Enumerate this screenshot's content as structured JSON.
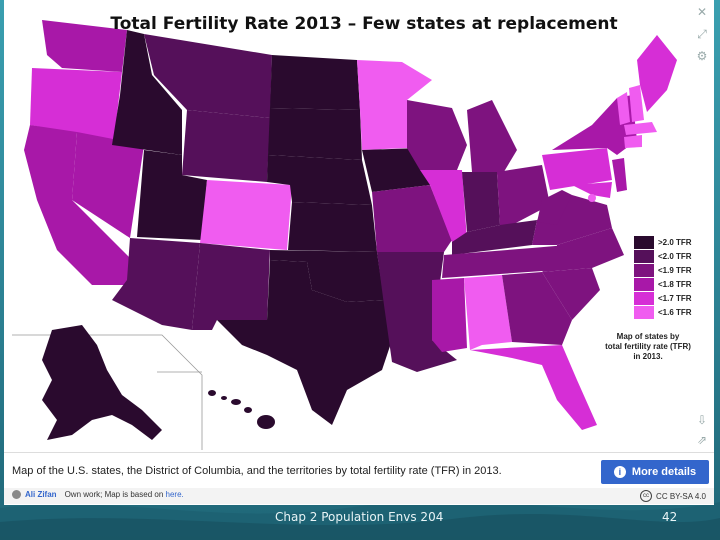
{
  "slide": {
    "title": "Total Fertility Rate 2013 – Few states at replacement",
    "footer": "Chap 2 Population Envs 204",
    "page_number": "42"
  },
  "legend": {
    "items": [
      {
        "label": ">2.0 TFR",
        "color": "#2a0a2e"
      },
      {
        "label": "<2.0 TFR",
        "color": "#55105a"
      },
      {
        "label": "<1.9 TFR",
        "color": "#7e137f"
      },
      {
        "label": "<1.8 TFR",
        "color": "#a818a8"
      },
      {
        "label": "<1.7 TFR",
        "color": "#d62ed6"
      },
      {
        "label": "<1.6 TFR",
        "color": "#f05cf0"
      }
    ],
    "caption_line1": "Map of states by",
    "caption_line2": "total fertility rate (TFR)",
    "caption_line3": "in 2013."
  },
  "info_bar": {
    "description": "Map of the U.S. states, the District of Columbia, and the territories by total fertility rate (TFR) in 2013.",
    "more_details_label": "More details"
  },
  "credit": {
    "author": "Ali Zifan",
    "source_text": "Own work; Map is based on",
    "source_link": "here.",
    "license": "CC BY-SA 4.0"
  },
  "tools": [
    "close-icon",
    "expand-icon",
    "settings-icon",
    "download-icon",
    "share-icon"
  ]
}
